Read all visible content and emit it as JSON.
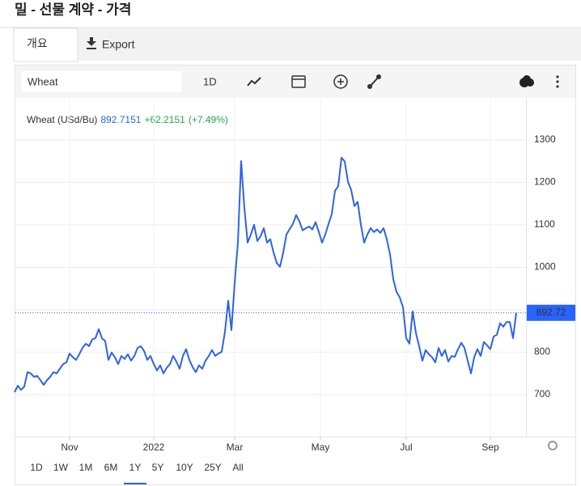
{
  "header": {
    "title": "밀 - 선물 계약 - 가격"
  },
  "tabs": [
    "개요",
    "Export"
  ],
  "toolbar": {
    "symbol": "Wheat",
    "interval": "1D"
  },
  "ranges": [
    "1D",
    "1W",
    "1M",
    "6M",
    "1Y",
    "5Y",
    "10Y",
    "25Y",
    "All"
  ],
  "selected_range": "1Y",
  "chart_data": {
    "type": "line",
    "series_label": "Wheat (USd/Bu)",
    "last": 892.7151,
    "change": "+62.2151",
    "change_pct": "(+7.49%)",
    "price_marker": 892.72,
    "color": "#2d63e8",
    "marker_color": "#2962ff",
    "change_color": "#22a94a",
    "grid": true,
    "values": [
      706,
      721,
      711,
      719,
      753,
      750,
      742,
      744,
      734,
      723,
      734,
      742,
      753,
      750,
      761,
      772,
      776,
      797,
      788,
      782,
      795,
      810,
      820,
      814,
      830,
      833,
      854,
      833,
      826,
      782,
      799,
      788,
      772,
      791,
      784,
      795,
      780,
      791,
      810,
      814,
      803,
      782,
      791,
      772,
      757,
      769,
      750,
      763,
      772,
      791,
      778,
      761,
      791,
      807,
      782,
      765,
      753,
      769,
      761,
      780,
      791,
      805,
      791,
      797,
      801,
      848,
      921,
      852,
      963,
      1058,
      1250,
      1140,
      1058,
      1077,
      1100,
      1062,
      1073,
      1092,
      1058,
      1066,
      1035,
      1010,
      1001,
      1035,
      1077,
      1090,
      1102,
      1123,
      1108,
      1087,
      1092,
      1096,
      1089,
      1106,
      1083,
      1058,
      1077,
      1102,
      1125,
      1180,
      1191,
      1258,
      1249,
      1201,
      1182,
      1144,
      1154,
      1100,
      1058,
      1077,
      1092,
      1083,
      1089,
      1081,
      1092,
      1066,
      1030,
      972,
      942,
      929,
      906,
      833,
      820,
      896,
      845,
      814,
      780,
      805,
      795,
      788,
      776,
      810,
      791,
      805,
      778,
      791,
      789,
      807,
      822,
      810,
      780,
      750,
      788,
      807,
      791,
      824,
      816,
      807,
      837,
      841,
      868,
      860,
      871,
      871,
      833,
      892.72
    ],
    "xlim": [
      0,
      155
    ],
    "xticks": [
      {
        "value": 17,
        "label": "Nov"
      },
      {
        "value": 43,
        "label": "2022"
      },
      {
        "value": 68,
        "label": "Mar"
      },
      {
        "value": 94.5,
        "label": "May"
      },
      {
        "value": 121,
        "label": "Jul"
      },
      {
        "value": 147,
        "label": "Sep"
      }
    ],
    "ylim": [
      601,
      1397
    ],
    "yticks": [
      700,
      800,
      900,
      1000,
      1100,
      1200,
      1300
    ]
  }
}
